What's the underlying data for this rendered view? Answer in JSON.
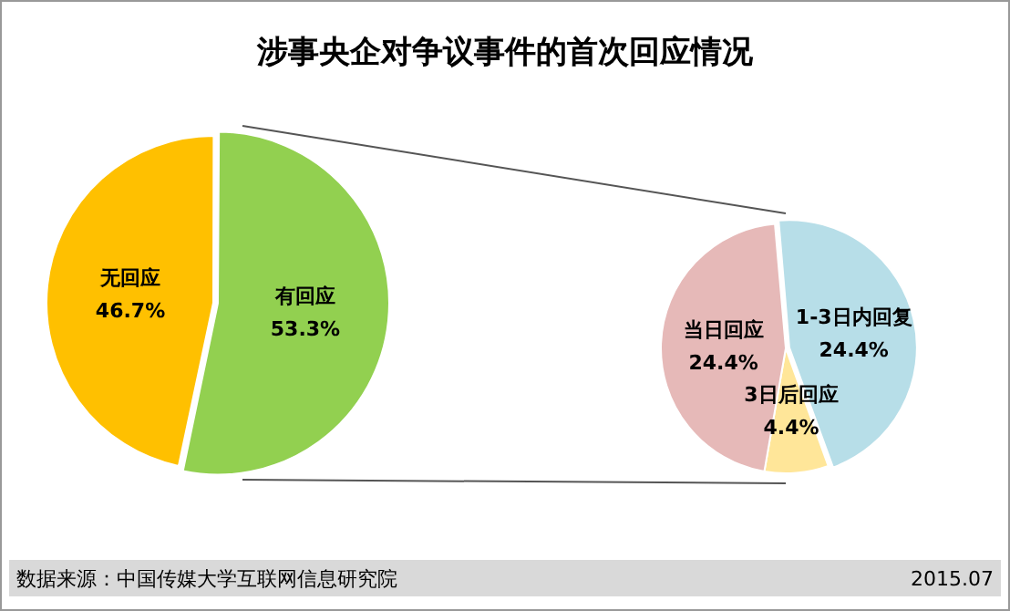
{
  "chart_data": [
    {
      "type": "pie",
      "title": "涉事央企对争议事件的首次回应情况",
      "categories": [
        "无回应",
        "有回应"
      ],
      "values": [
        46.7,
        53.3
      ],
      "value_labels": [
        "46.7%",
        "53.3%"
      ],
      "colors": [
        "#ffc000",
        "#92d050"
      ],
      "legend": false
    },
    {
      "type": "pie",
      "categories": [
        "1-3日内回复",
        "3日后回应",
        "当日回应"
      ],
      "values": [
        24.4,
        4.4,
        24.4
      ],
      "value_labels": [
        "24.4%",
        "4.4%",
        "24.4%"
      ],
      "colors": [
        "#b7dee8",
        "#ffe699",
        "#e6b9b8"
      ],
      "legend": false,
      "annotations": [
        "数据来源：中国传媒大学互联网信息研究院",
        "2015.07"
      ]
    }
  ]
}
